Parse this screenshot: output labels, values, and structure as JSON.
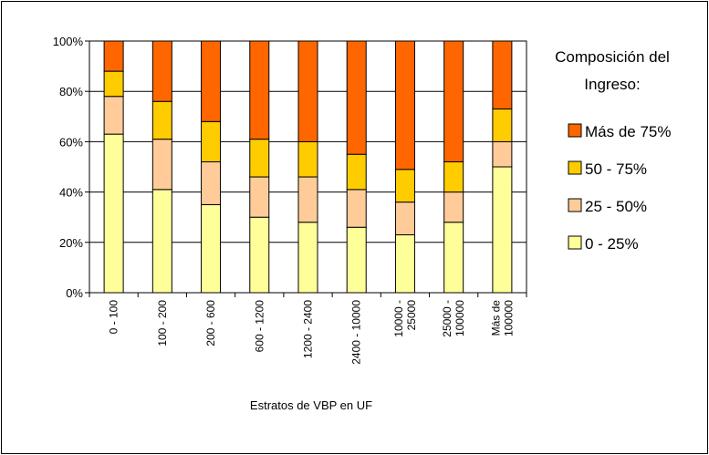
{
  "chart_data": {
    "type": "bar",
    "stacked": "percent",
    "title": "",
    "xlabel": "Estratos de VBP en UF",
    "ylabel": "",
    "ylim": [
      0,
      100
    ],
    "yticks": [
      "0%",
      "20%",
      "40%",
      "60%",
      "80%",
      "100%"
    ],
    "categories": [
      [
        "0 - 100"
      ],
      [
        "100 - 200"
      ],
      [
        "200 - 600"
      ],
      [
        "600 - 1200"
      ],
      [
        "1200 - 2400"
      ],
      [
        "2400 - 10000"
      ],
      [
        "10000 -",
        "25000"
      ],
      [
        "25000 -",
        "100000"
      ],
      [
        "Más de",
        "100000"
      ]
    ],
    "legend_title": [
      "Composición del",
      "Ingreso:"
    ],
    "legend_position": "right",
    "grid": true,
    "series": [
      {
        "name": "0 - 25%",
        "color": "#FFFF99",
        "values": [
          63,
          41,
          35,
          30,
          28,
          26,
          23,
          28,
          50
        ]
      },
      {
        "name": "25 - 50%",
        "color": "#FFCC99",
        "values": [
          15,
          20,
          17,
          16,
          18,
          15,
          13,
          12,
          10
        ]
      },
      {
        "name": "50 - 75%",
        "color": "#FFCC00",
        "values": [
          10,
          15,
          16,
          15,
          14,
          14,
          13,
          12,
          13
        ]
      },
      {
        "name": "Más de 75%",
        "color": "#FF6600",
        "values": [
          12,
          24,
          32,
          39,
          40,
          45,
          51,
          48,
          27
        ]
      }
    ]
  }
}
